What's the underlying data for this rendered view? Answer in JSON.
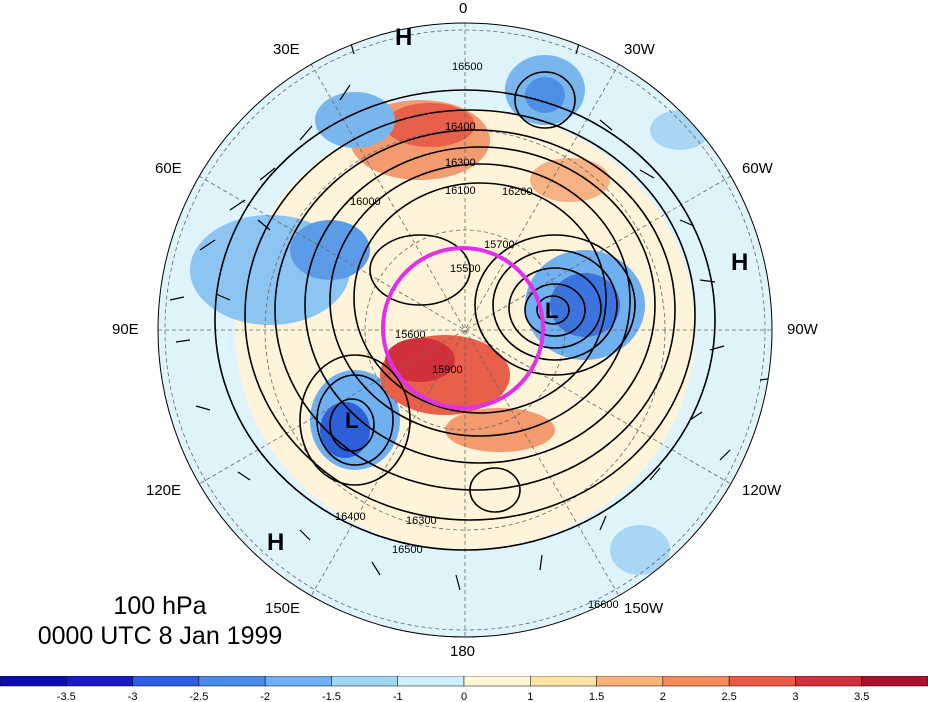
{
  "panel": {
    "level": "100 hPa",
    "time": "0000 UTC 8 Jan 1999"
  },
  "longitude_labels": {
    "lon_0": "0",
    "lon_30w": "30W",
    "lon_60w": "60W",
    "lon_90w": "90W",
    "lon_120w": "120W",
    "lon_150w": "150W",
    "lon_180": "180",
    "lon_150e": "150E",
    "lon_120e": "120E",
    "lon_90e": "90E",
    "lon_60e": "60E",
    "lon_30e": "30E"
  },
  "pressure_centers": [
    {
      "label": "H",
      "location": "near 0 meridian"
    },
    {
      "label": "H",
      "location": "near 90W"
    },
    {
      "label": "H",
      "location": "near 150E"
    },
    {
      "label": "L",
      "location": "near 60-90W, Hudson Bay"
    },
    {
      "label": "L",
      "location": "near 120E, Siberia"
    }
  ],
  "contour_labels": [
    "16500",
    "16400",
    "16300",
    "16100",
    "16200",
    "16000",
    "15700",
    "15500",
    "15900",
    "15600",
    "16300",
    "16400",
    "16500",
    "16600"
  ],
  "colorbar": {
    "ticks": [
      "-3.5",
      "-3",
      "-2.5",
      "-2",
      "-1.5",
      "-1",
      "0",
      "1",
      "1.5",
      "2",
      "2.5",
      "3",
      "3.5"
    ],
    "colors": [
      "#1a1ac8",
      "#2f5fe0",
      "#4a8ce8",
      "#6fb0f0",
      "#9fd5f5",
      "#cdeefa",
      "#fff7d6",
      "#fde3a6",
      "#f9b27a",
      "#f28a5a",
      "#e85a45",
      "#d0303a",
      "#a8122a"
    ]
  },
  "highlight": {
    "shape": "circle",
    "color": "#e030e8"
  }
}
